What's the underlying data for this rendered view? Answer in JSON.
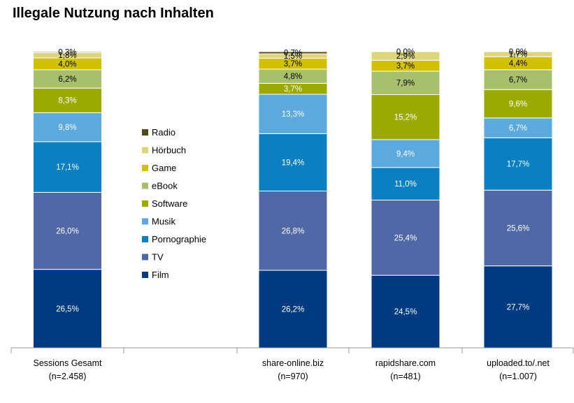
{
  "chart_data": {
    "type": "bar",
    "stacked": true,
    "normalized": true,
    "title": "Illegale Nutzung nach Inhalten",
    "categories": [
      [
        "Sessions Gesamt",
        "(n=2.458)"
      ],
      [
        "",
        ""
      ],
      [
        "share-online.biz",
        "(n=970)"
      ],
      [
        "rapidshare.com",
        "(n=481)"
      ],
      [
        "uploaded.to/.net",
        "(n=1.007)"
      ]
    ],
    "series": [
      {
        "name": "Film",
        "color": "#003a80",
        "values": [
          26.5,
          null,
          26.2,
          24.5,
          27.7
        ],
        "labels": [
          "26,5%",
          "",
          "26,2%",
          "24,5%",
          "27,7%"
        ]
      },
      {
        "name": "TV",
        "color": "#5168a7",
        "values": [
          26.0,
          null,
          26.8,
          25.4,
          25.6
        ],
        "labels": [
          "26,0%",
          "",
          "26,8%",
          "25,4%",
          "25,6%"
        ]
      },
      {
        "name": "Pornographie",
        "color": "#0a7fc1",
        "values": [
          17.1,
          null,
          19.4,
          11.0,
          17.7
        ],
        "labels": [
          "17,1%",
          "",
          "19,4%",
          "11,0%",
          "17,7%"
        ]
      },
      {
        "name": "Musik",
        "color": "#5ba9de",
        "values": [
          9.8,
          null,
          13.3,
          9.4,
          6.7
        ],
        "labels": [
          "9,8%",
          "",
          "13,3%",
          "9,4%",
          "6,7%"
        ]
      },
      {
        "name": "Software",
        "color": "#9aaa00",
        "values": [
          8.3,
          null,
          3.7,
          15.2,
          9.6
        ],
        "labels": [
          "8,3%",
          "",
          "3,7%",
          "15,2%",
          "9,6%"
        ]
      },
      {
        "name": "eBook",
        "color": "#a8bf6c",
        "values": [
          6.2,
          null,
          4.8,
          7.9,
          6.7
        ],
        "labels": [
          "6,2%",
          "",
          "4,8%",
          "7,9%",
          "6,7%"
        ]
      },
      {
        "name": "Game",
        "color": "#d2c100",
        "values": [
          4.0,
          null,
          3.7,
          3.7,
          4.4
        ],
        "labels": [
          "4,0%",
          "",
          "3,7%",
          "3,7%",
          "4,4%"
        ]
      },
      {
        "name": "Hörbuch",
        "color": "#dcd57a",
        "values": [
          1.8,
          null,
          1.5,
          2.9,
          1.7
        ],
        "labels": [
          "1,8%",
          "",
          "1,5%",
          "2,9%",
          "1,7%"
        ]
      },
      {
        "name": "Radio",
        "color": "#4f4a1c",
        "values": [
          0.3,
          null,
          0.7,
          0.0,
          0.0
        ],
        "labels": [
          "0,3%",
          "",
          "0,7%",
          "0,0%",
          "0,0%"
        ]
      }
    ],
    "label_colors": {
      "light": "#ffffff",
      "dark": "#000000"
    },
    "legend": {
      "position": "center-left",
      "order": [
        "Radio",
        "Hörbuch",
        "Game",
        "eBook",
        "Software",
        "Musik",
        "Pornographie",
        "TV",
        "Film"
      ]
    },
    "grid": false,
    "ylim": [
      0,
      100
    ]
  }
}
